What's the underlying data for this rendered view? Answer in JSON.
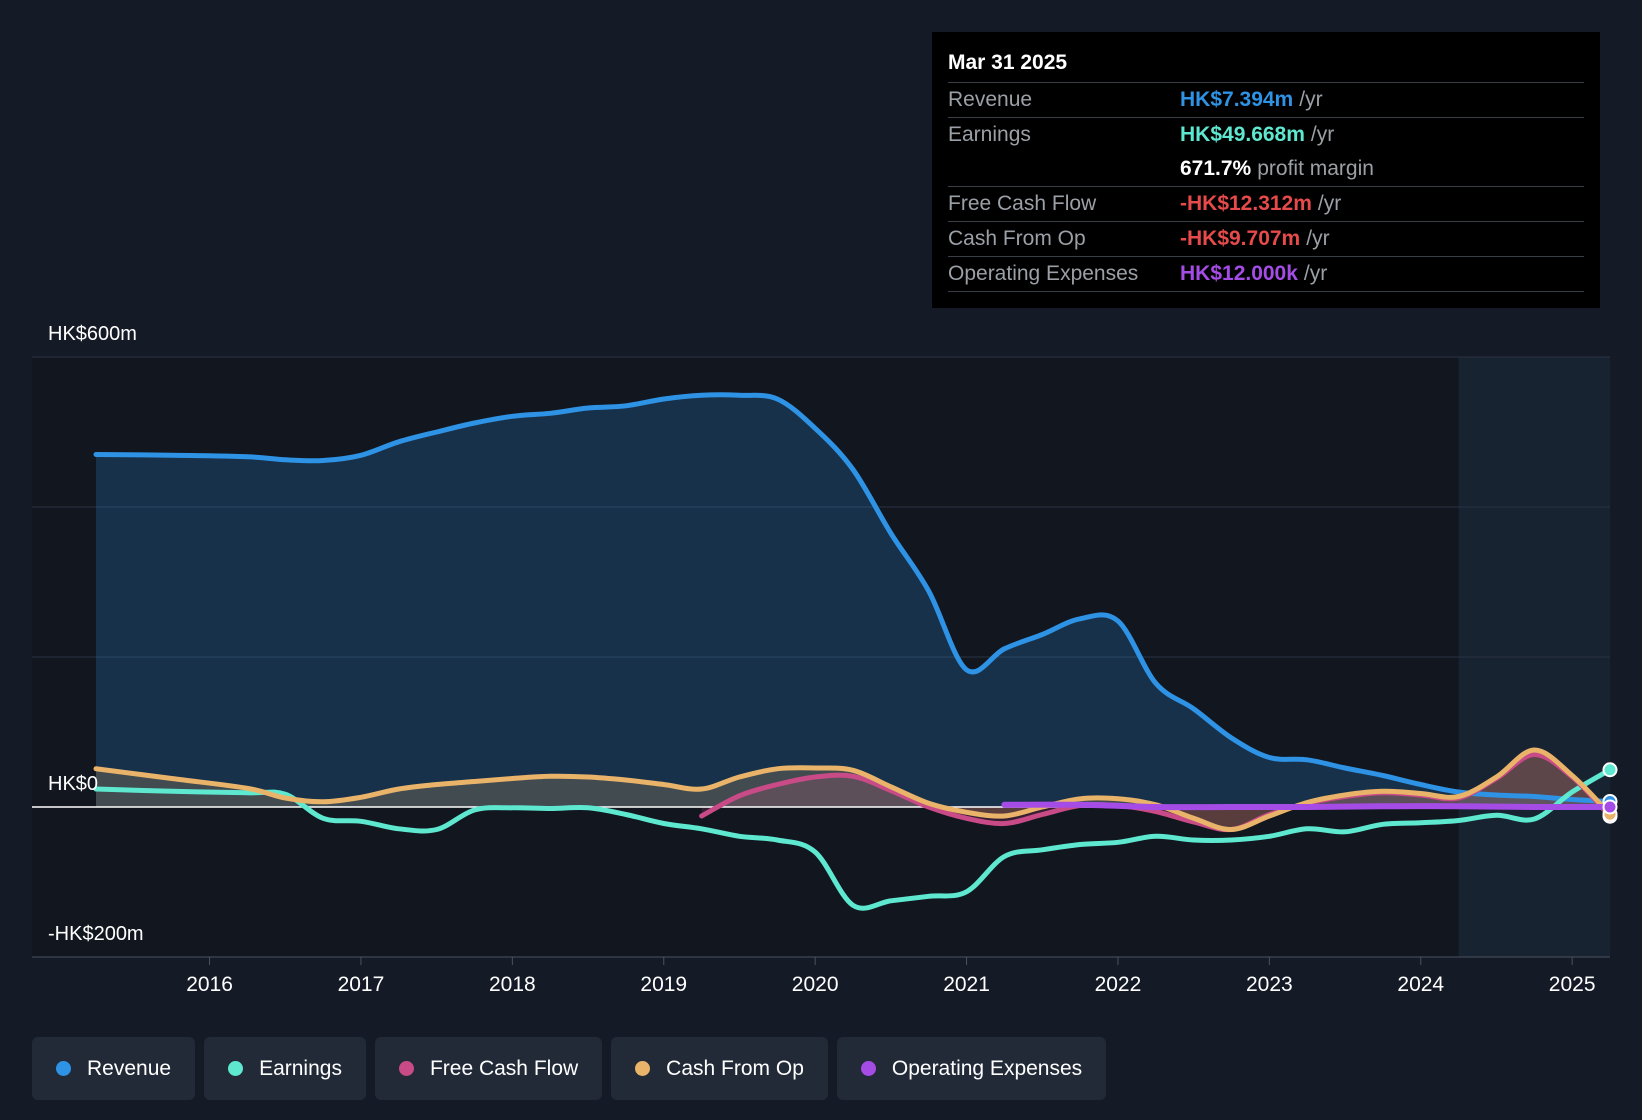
{
  "chart_data": {
    "type": "area",
    "title": "",
    "y_labels": {
      "top": "HK$600m",
      "zero": "HK$0",
      "bottom": "-HK$200m"
    },
    "ylim": [
      -200,
      600
    ],
    "xlim": [
      2015.25,
      2025.25
    ],
    "x_ticks": [
      "2016",
      "2017",
      "2018",
      "2019",
      "2020",
      "2021",
      "2022",
      "2023",
      "2024",
      "2025"
    ],
    "x_tick_values": [
      2016,
      2017,
      2018,
      2019,
      2020,
      2021,
      2022,
      2023,
      2024,
      2025
    ],
    "forecast_start": 2024.25,
    "grid": true,
    "series": [
      {
        "name": "Revenue",
        "color": "#2e92e5",
        "fill": true,
        "points": [
          [
            2015.25,
            470
          ],
          [
            2015.75,
            469
          ],
          [
            2016.25,
            467
          ],
          [
            2016.5,
            463
          ],
          [
            2016.75,
            462
          ],
          [
            2017.0,
            469
          ],
          [
            2017.25,
            487
          ],
          [
            2017.5,
            500
          ],
          [
            2017.75,
            512
          ],
          [
            2018.0,
            521
          ],
          [
            2018.25,
            525
          ],
          [
            2018.5,
            532
          ],
          [
            2018.75,
            535
          ],
          [
            2019.0,
            544
          ],
          [
            2019.25,
            549
          ],
          [
            2019.5,
            549
          ],
          [
            2019.75,
            544
          ],
          [
            2020.0,
            505
          ],
          [
            2020.25,
            450
          ],
          [
            2020.5,
            365
          ],
          [
            2020.75,
            288
          ],
          [
            2021.0,
            183
          ],
          [
            2021.25,
            211
          ],
          [
            2021.5,
            230
          ],
          [
            2021.75,
            251
          ],
          [
            2022.0,
            248
          ],
          [
            2022.25,
            165
          ],
          [
            2022.5,
            131
          ],
          [
            2022.75,
            92
          ],
          [
            2023.0,
            66
          ],
          [
            2023.25,
            63
          ],
          [
            2023.5,
            52
          ],
          [
            2023.75,
            42
          ],
          [
            2024.0,
            30
          ],
          [
            2024.25,
            20
          ],
          [
            2024.5,
            16
          ],
          [
            2024.75,
            14
          ],
          [
            2025.0,
            10
          ],
          [
            2025.25,
            7.394
          ]
        ]
      },
      {
        "name": "Earnings",
        "color": "#5ee8d0",
        "fill": false,
        "points": [
          [
            2015.25,
            24
          ],
          [
            2015.75,
            21
          ],
          [
            2016.25,
            19
          ],
          [
            2016.5,
            17
          ],
          [
            2016.75,
            -15
          ],
          [
            2017.0,
            -19
          ],
          [
            2017.25,
            -29
          ],
          [
            2017.5,
            -30
          ],
          [
            2017.75,
            -4
          ],
          [
            2018.0,
            -1
          ],
          [
            2018.25,
            -2
          ],
          [
            2018.5,
            -1
          ],
          [
            2018.75,
            -10
          ],
          [
            2019.0,
            -22
          ],
          [
            2019.25,
            -29
          ],
          [
            2019.5,
            -39
          ],
          [
            2019.75,
            -44
          ],
          [
            2020.0,
            -60
          ],
          [
            2020.25,
            -131
          ],
          [
            2020.5,
            -125
          ],
          [
            2020.75,
            -119
          ],
          [
            2021.0,
            -113
          ],
          [
            2021.25,
            -66
          ],
          [
            2021.5,
            -57
          ],
          [
            2021.75,
            -50
          ],
          [
            2022.0,
            -47
          ],
          [
            2022.25,
            -39
          ],
          [
            2022.5,
            -44
          ],
          [
            2022.75,
            -44
          ],
          [
            2023.0,
            -39
          ],
          [
            2023.25,
            -29
          ],
          [
            2023.5,
            -33
          ],
          [
            2023.75,
            -23
          ],
          [
            2024.0,
            -21
          ],
          [
            2024.25,
            -18
          ],
          [
            2024.5,
            -11
          ],
          [
            2024.75,
            -16
          ],
          [
            2025.0,
            20
          ],
          [
            2025.25,
            49.668
          ]
        ]
      },
      {
        "name": "Free Cash Flow",
        "color": "#c84a86",
        "fill": true,
        "points": [
          [
            2019.25,
            -12
          ],
          [
            2019.5,
            15
          ],
          [
            2019.75,
            30
          ],
          [
            2020.0,
            40
          ],
          [
            2020.25,
            41
          ],
          [
            2020.5,
            22
          ],
          [
            2020.75,
            0
          ],
          [
            2021.0,
            -15
          ],
          [
            2021.25,
            -22
          ],
          [
            2021.5,
            -10
          ],
          [
            2021.75,
            2
          ],
          [
            2022.0,
            2
          ],
          [
            2022.25,
            -6
          ],
          [
            2022.5,
            -20
          ],
          [
            2022.75,
            -30
          ],
          [
            2023.0,
            -10
          ],
          [
            2023.25,
            5
          ],
          [
            2023.5,
            14
          ],
          [
            2023.75,
            19
          ],
          [
            2024.0,
            16
          ],
          [
            2024.25,
            12
          ],
          [
            2024.5,
            38
          ],
          [
            2024.75,
            70
          ],
          [
            2025.0,
            40
          ],
          [
            2025.25,
            -12.312
          ]
        ]
      },
      {
        "name": "Cash From Op",
        "color": "#e9b36a",
        "fill": true,
        "points": [
          [
            2015.25,
            51
          ],
          [
            2015.75,
            38
          ],
          [
            2016.25,
            25
          ],
          [
            2016.5,
            12
          ],
          [
            2016.75,
            7
          ],
          [
            2017.0,
            13
          ],
          [
            2017.25,
            24
          ],
          [
            2017.5,
            30
          ],
          [
            2017.75,
            34
          ],
          [
            2018.0,
            38
          ],
          [
            2018.25,
            41
          ],
          [
            2018.5,
            40
          ],
          [
            2018.75,
            36
          ],
          [
            2019.0,
            30
          ],
          [
            2019.25,
            24
          ],
          [
            2019.5,
            40
          ],
          [
            2019.75,
            51
          ],
          [
            2020.0,
            52
          ],
          [
            2020.25,
            49
          ],
          [
            2020.5,
            27
          ],
          [
            2020.75,
            5
          ],
          [
            2021.0,
            -7
          ],
          [
            2021.25,
            -12
          ],
          [
            2021.5,
            0
          ],
          [
            2021.75,
            11
          ],
          [
            2022.0,
            11
          ],
          [
            2022.25,
            3
          ],
          [
            2022.5,
            -15
          ],
          [
            2022.75,
            -30
          ],
          [
            2023.0,
            -12
          ],
          [
            2023.25,
            6
          ],
          [
            2023.5,
            16
          ],
          [
            2023.75,
            21
          ],
          [
            2024.0,
            18
          ],
          [
            2024.25,
            14
          ],
          [
            2024.5,
            40
          ],
          [
            2024.75,
            76
          ],
          [
            2025.0,
            42
          ],
          [
            2025.25,
            -9.707
          ]
        ]
      },
      {
        "name": "Operating Expenses",
        "color": "#a64ce6",
        "fill": false,
        "points": [
          [
            2021.25,
            3
          ],
          [
            2021.75,
            3
          ],
          [
            2022.25,
            0
          ],
          [
            2022.75,
            0
          ],
          [
            2023.25,
            0
          ],
          [
            2023.75,
            1
          ],
          [
            2024.25,
            1
          ],
          [
            2024.75,
            0
          ],
          [
            2025.25,
            0.012
          ]
        ]
      }
    ]
  },
  "tooltip": {
    "date": "Mar 31 2025",
    "rows": [
      {
        "label": "Revenue",
        "value": "HK$7.394m",
        "unit": "/yr",
        "color": "#2e92e5"
      },
      {
        "label": "Earnings",
        "value": "HK$49.668m",
        "unit": "/yr",
        "color": "#5ee8d0"
      },
      {
        "label": "",
        "value": "671.7%",
        "unit": "profit margin",
        "color": "#ffffff"
      },
      {
        "label": "Free Cash Flow",
        "value": "-HK$12.312m",
        "unit": "/yr",
        "color": "#e64a4a"
      },
      {
        "label": "Cash From Op",
        "value": "-HK$9.707m",
        "unit": "/yr",
        "color": "#e64a4a"
      },
      {
        "label": "Operating Expenses",
        "value": "HK$12.000k",
        "unit": "/yr",
        "color": "#a64ce6"
      }
    ]
  },
  "legend": [
    {
      "label": "Revenue",
      "color": "#2e92e5"
    },
    {
      "label": "Earnings",
      "color": "#5ee8d0"
    },
    {
      "label": "Free Cash Flow",
      "color": "#c84a86"
    },
    {
      "label": "Cash From Op",
      "color": "#e9b36a"
    },
    {
      "label": "Operating Expenses",
      "color": "#a64ce6"
    }
  ]
}
